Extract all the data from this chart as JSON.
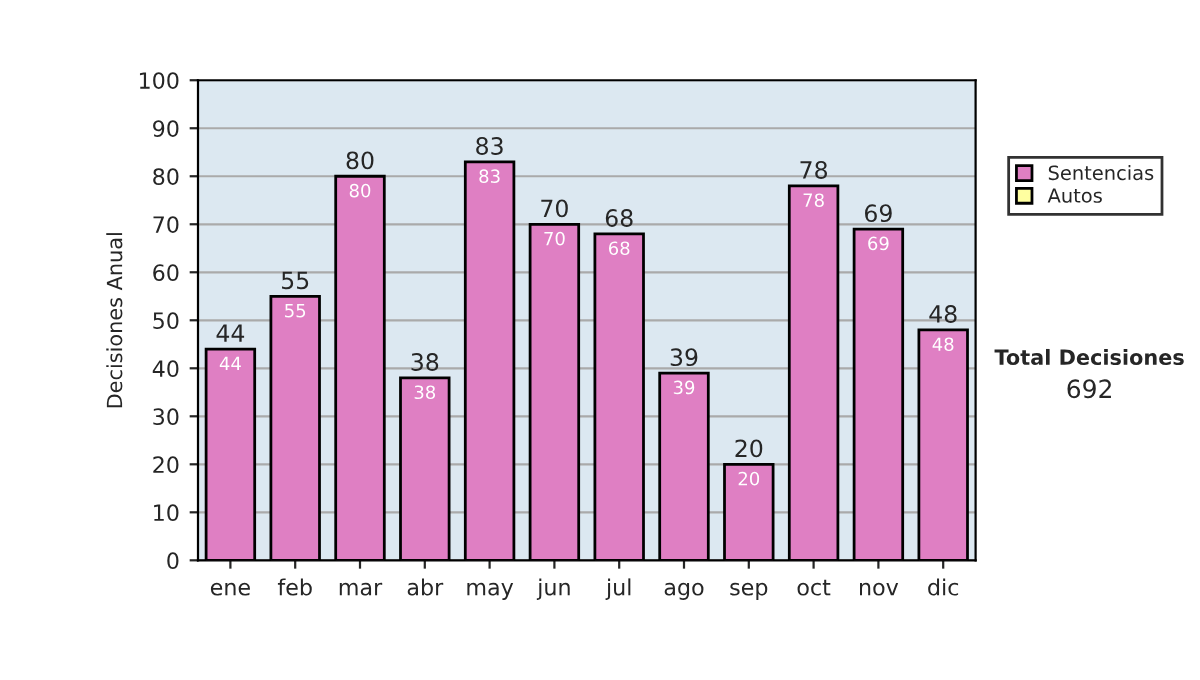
{
  "chart_data": {
    "type": "bar",
    "ylabel": "Decisiones Anual",
    "categories": [
      "ene",
      "feb",
      "mar",
      "abr",
      "may",
      "jun",
      "jul",
      "ago",
      "sep",
      "oct",
      "nov",
      "dic"
    ],
    "series": [
      {
        "name": "Sentencias",
        "color": "#df7fc3",
        "values": [
          44,
          55,
          80,
          38,
          83,
          70,
          68,
          39,
          20,
          78,
          69,
          48
        ],
        "value_labels": [
          "44",
          "55",
          "80",
          "38",
          "83",
          "70",
          "68",
          "39",
          "20",
          "78",
          "69",
          "48"
        ]
      },
      {
        "name": "Autos",
        "color": "#ffffa0",
        "values": [
          null,
          null,
          null,
          null,
          null,
          null,
          null,
          null,
          null,
          null,
          null,
          null
        ]
      }
    ],
    "stacked": true,
    "totals": [
      "44",
      "55",
      "80",
      "38",
      "83",
      "70",
      "68",
      "39",
      "20",
      "78",
      "69",
      "48"
    ],
    "ylim": [
      0,
      100
    ],
    "yticks": [
      0,
      10,
      20,
      30,
      40,
      50,
      60,
      70,
      80,
      90,
      100
    ],
    "grid": "y",
    "legend": "right",
    "annotations": [
      "Total Decisiones",
      "692"
    ]
  }
}
